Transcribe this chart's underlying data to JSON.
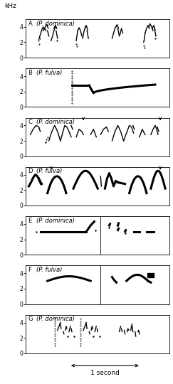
{
  "figure_width": 2.43,
  "figure_height": 5.4,
  "dpi": 100,
  "labels": [
    "A",
    "B",
    "C",
    "D",
    "E",
    "F",
    "G"
  ],
  "species": [
    "(P. dominica)",
    "(P. fulva)",
    "(P. dominica)",
    "(P. fulva)",
    "(P. dominica)",
    "(P. fulva)",
    "(P. dominica)"
  ],
  "ylabel": "kHz",
  "xlabel": "1 second",
  "yticks": [
    0,
    2,
    4
  ],
  "ylim": [
    0,
    5
  ],
  "bg_color": "#ffffff",
  "n_panels": 7
}
